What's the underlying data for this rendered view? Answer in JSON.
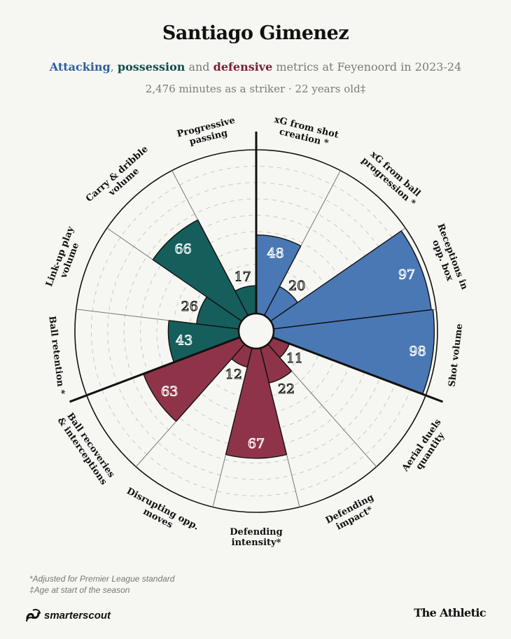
{
  "header": {
    "title": "Santiago Gimenez",
    "subtitle": {
      "attacking": "Attacking",
      "sep1": ", ",
      "possession": "possession",
      "sep2": " and ",
      "defensive": "defensive",
      "rest": " metrics at Feyenoord in 2023-24"
    },
    "info": "2,476 minutes as a striker · 22 years old‡"
  },
  "colors": {
    "attacking": "#4a78b5",
    "possession": "#155e5c",
    "defensive": "#8f3448",
    "background": "#f6f6f2"
  },
  "chart_data": {
    "type": "polar-bar",
    "title": "Santiago Gimenez",
    "range": [
      0,
      100
    ],
    "grid": true,
    "categories": [
      "xG from shot creation *",
      "xG from ball progression *",
      "Receptions in opp. box",
      "Shot volume",
      "Aerial duels quantity",
      "Defending impact*",
      "Defending intensity*",
      "Disrupting opp. moves",
      "Ball recoveries & interceptions",
      "Ball retention *",
      "Link-up play volume",
      "Carry & dribble volume",
      "Progressive passing"
    ],
    "label_lines": [
      [
        "xG from shot",
        "creation *"
      ],
      [
        "xG from ball",
        "progression *"
      ],
      [
        "Receptions in",
        "opp. box"
      ],
      [
        "Shot volume"
      ],
      [
        "Aerial duels",
        "quantity"
      ],
      [
        "Defending",
        "impact*"
      ],
      [
        "Defending",
        "intensity*"
      ],
      [
        "Disrupting opp.",
        "moves"
      ],
      [
        "Ball recoveries",
        "& interceptions"
      ],
      [
        "Ball retention *"
      ],
      [
        "Link-up play",
        "volume"
      ],
      [
        "Carry & dribble",
        "volume"
      ],
      [
        "Progressive",
        "passing"
      ]
    ],
    "groups": [
      "attacking",
      "attacking",
      "attacking",
      "attacking",
      "defensive",
      "defensive",
      "defensive",
      "defensive",
      "defensive",
      "possession",
      "possession",
      "possession",
      "possession"
    ],
    "values": [
      48,
      20,
      97,
      98,
      11,
      22,
      67,
      12,
      63,
      43,
      26,
      66,
      17
    ],
    "legend": [
      "Attacking",
      "possession",
      "defensive"
    ]
  },
  "footer": {
    "note1": "*Adjusted for Premier League standard",
    "note2": "‡Age at start of the season",
    "brand_left": "smarterscout",
    "brand_right": "The Athletic"
  }
}
